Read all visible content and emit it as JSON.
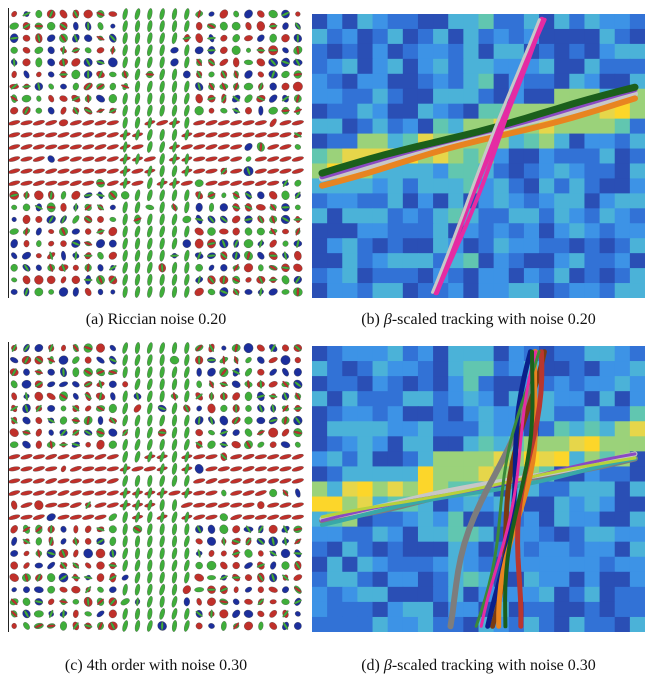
{
  "figure": {
    "panels": [
      {
        "id": "a",
        "kind": "glyph-field",
        "caption_prefix": "(a) ",
        "caption_greek": "",
        "caption_text": "Riccian noise 0.20",
        "noise": 0.2
      },
      {
        "id": "b",
        "kind": "tracking",
        "caption_prefix": "(b) ",
        "caption_greek": "β",
        "caption_text": "-scaled tracking with noise 0.20",
        "noise": 0.2
      },
      {
        "id": "c",
        "kind": "glyph-field",
        "caption_prefix": "(c) ",
        "caption_greek": "",
        "caption_text": "4th order with noise 0.30",
        "noise": 0.3
      },
      {
        "id": "d",
        "kind": "tracking",
        "caption_prefix": "(d) ",
        "caption_greek": "β",
        "caption_text": "-scaled tracking with noise 0.30",
        "noise": 0.3
      }
    ],
    "glyph_colors": {
      "horizontal": "#c0302a",
      "vertical": "#3fae3a",
      "through_plane": "#1c2f9c",
      "outline": "#444444"
    },
    "heatmap_colors": [
      "#2a4fb5",
      "#3272d6",
      "#3d93e6",
      "#4bb2d8",
      "#61c6b0",
      "#9bd27a",
      "#e6d64a",
      "#fcd62a"
    ],
    "fiber_colors": [
      "#e52ba3",
      "#1b5f1b",
      "#e88420",
      "#8a4ac2",
      "#c7c7c7",
      "#0b1f8a",
      "#7a3b12",
      "#b8372f",
      "#7d7d7d",
      "#39a8a8",
      "#b7d23b",
      "#3a8a3a"
    ]
  }
}
